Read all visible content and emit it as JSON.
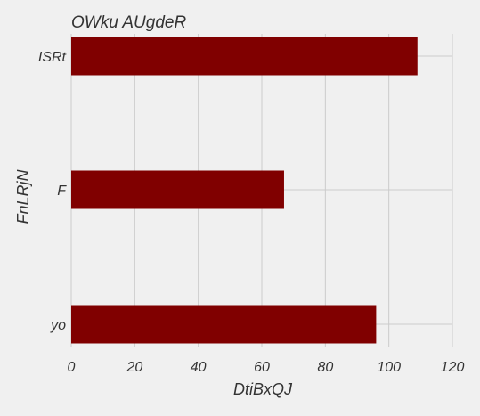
{
  "chart_data": {
    "type": "bar",
    "orientation": "horizontal",
    "title": "OWku AUgdeR",
    "xlabel": "DtiBxQJ",
    "ylabel": "FnLRjN",
    "categories": [
      "ISRt",
      "F",
      "yo"
    ],
    "values": [
      109,
      67,
      96
    ],
    "xlim": [
      0,
      120
    ],
    "xticks": [
      0,
      20,
      40,
      60,
      80,
      100,
      120
    ],
    "grid": true,
    "bar_color": "#800000",
    "background_color": "#f0f0f0",
    "grid_color": "#cbcbcb"
  }
}
